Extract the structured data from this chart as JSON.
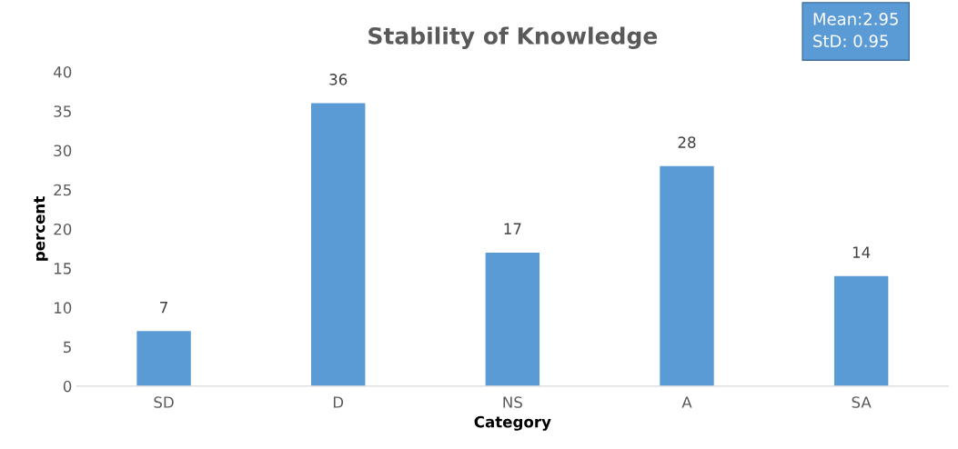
{
  "chart_data": {
    "type": "bar",
    "title": "Stability of Knowledge",
    "xlabel": "Category",
    "ylabel": "percent",
    "categories": [
      "SD",
      "D",
      "NS",
      "A",
      "SA"
    ],
    "values": [
      7,
      36,
      17,
      28,
      14
    ],
    "color": "#5b9bd5",
    "ylim": [
      0,
      40
    ],
    "yticks": [
      0,
      5,
      10,
      15,
      20,
      25,
      30,
      35,
      40
    ],
    "grid": false,
    "data_labels": true,
    "annotations": [
      "Mean:2.95",
      "StD: 0.95"
    ]
  }
}
